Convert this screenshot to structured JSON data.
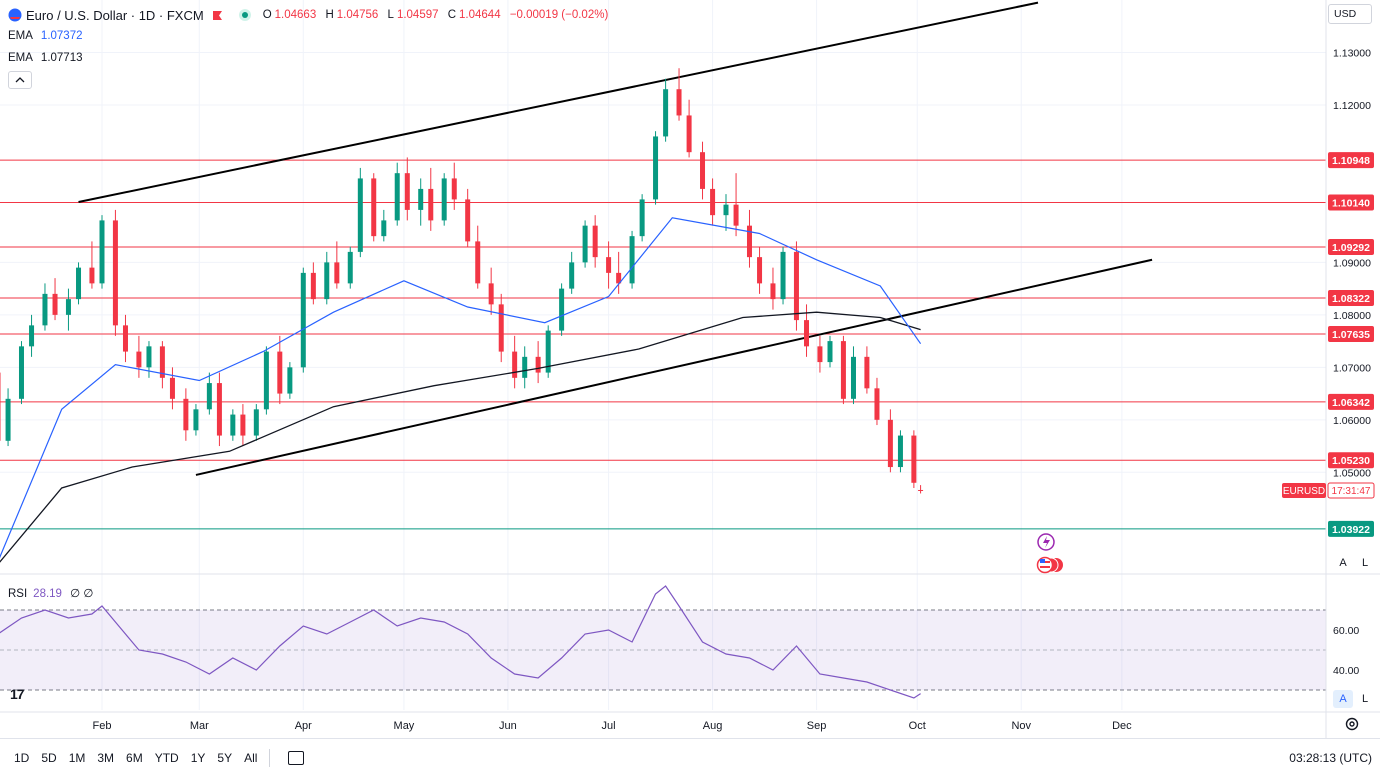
{
  "header": {
    "symbol_title": "Euro / U.S. Dollar · 1D · FXCM",
    "ohlc": [
      {
        "k": "O",
        "v": "1.04663"
      },
      {
        "k": "H",
        "v": "1.04756"
      },
      {
        "k": "L",
        "v": "1.04597"
      },
      {
        "k": "C",
        "v": "1.04644"
      },
      {
        "k": "",
        "v": "−0.00019 (−0.02%)"
      }
    ]
  },
  "indicators": {
    "ema1": {
      "label": "EMA",
      "value": "1.07372",
      "color": "#2962ff"
    },
    "ema2": {
      "label": "EMA",
      "value": "1.07713",
      "color": "#131722"
    },
    "rsi": {
      "label": "RSI",
      "value": "28.19",
      "extra": "∅ ∅",
      "color": "#7e57c2"
    }
  },
  "currency_selector": "USD",
  "scale_buttons": {
    "auto": "A",
    "log": "L"
  },
  "timeframes": [
    "1D",
    "5D",
    "1M",
    "3M",
    "6M",
    "YTD",
    "1Y",
    "5Y",
    "All"
  ],
  "clock": "03:28:13 (UTC)",
  "logo": "17",
  "colors": {
    "up": "#089981",
    "down": "#f23645",
    "ema_fast": "#2962ff",
    "ema_slow": "#131722",
    "rsi": "#7e57c2",
    "support": "#089981",
    "resistance": "#f23645"
  },
  "chart_data": {
    "type": "candlestick",
    "symbol": "EURUSD",
    "price_axis": {
      "range": [
        1.031,
        1.14
      ],
      "ticks": [
        "1.13000",
        "1.12000",
        "1.09000",
        "1.08000",
        "1.07000",
        "1.06000",
        "1.05000"
      ]
    },
    "time_axis": {
      "labels": [
        "Feb",
        "Mar",
        "Apr",
        "May",
        "Jun",
        "Jul",
        "Aug",
        "Sep",
        "Oct",
        "Nov",
        "Dec"
      ]
    },
    "horizontal_levels": [
      {
        "price": 1.10948,
        "label": "1.10948",
        "color": "#f23645"
      },
      {
        "price": 1.1014,
        "label": "1.10140",
        "color": "#f23645"
      },
      {
        "price": 1.09292,
        "label": "1.09292",
        "color": "#f23645"
      },
      {
        "price": 1.08322,
        "label": "1.08322",
        "color": "#f23645"
      },
      {
        "price": 1.07635,
        "label": "1.07635",
        "color": "#f23645"
      },
      {
        "price": 1.06342,
        "label": "1.06342",
        "color": "#f23645"
      },
      {
        "price": 1.0523,
        "label": "1.05230",
        "color": "#f23645"
      },
      {
        "price": 1.03922,
        "label": "1.03922",
        "color": "#089981"
      }
    ],
    "current_price": {
      "symbol": "EURUSD",
      "countdown": "17:31:47"
    },
    "trend_channel": [
      {
        "from": [
          "Jan 25",
          1.1015
        ],
        "to": [
          "Nov 6",
          1.1395
        ]
      },
      {
        "from": [
          "Feb 29",
          1.0495
        ],
        "to": [
          "Dec 10",
          1.0905
        ]
      }
    ],
    "ema_fast_path": [
      [
        "Jan 1",
        1.033
      ],
      [
        "Jan 20",
        1.062
      ],
      [
        "Feb 5",
        1.0705
      ],
      [
        "Mar 1",
        1.0675
      ],
      [
        "Mar 20",
        1.073
      ],
      [
        "Apr 10",
        1.0805
      ],
      [
        "May 1",
        1.0865
      ],
      [
        "May 20",
        1.0815
      ],
      [
        "Jun 12",
        1.0785
      ],
      [
        "Jul 1",
        1.0835
      ],
      [
        "Jul 20",
        1.0985
      ],
      [
        "Aug 15",
        1.0955
      ],
      [
        "Sep 1",
        1.0905
      ],
      [
        "Sep 20",
        1.0855
      ],
      [
        "Oct 2",
        1.0745
      ]
    ],
    "ema_slow_path": [
      [
        "Jan 1",
        1.0325
      ],
      [
        "Jan 20",
        1.047
      ],
      [
        "Feb 10",
        1.051
      ],
      [
        "Mar 10",
        1.054
      ],
      [
        "Apr 10",
        1.0625
      ],
      [
        "May 10",
        1.0665
      ],
      [
        "Jun 10",
        1.0698
      ],
      [
        "Jul 10",
        1.0735
      ],
      [
        "Aug 10",
        1.0795
      ],
      [
        "Sep 1",
        1.0805
      ],
      [
        "Sep 20",
        1.0795
      ],
      [
        "Oct 2",
        1.0772
      ]
    ],
    "candles": [
      [
        "Jan 1",
        1.069,
        1.072,
        1.053,
        1.056
      ],
      [
        "Jan 4",
        1.056,
        1.066,
        1.055,
        1.064
      ],
      [
        "Jan 8",
        1.064,
        1.075,
        1.063,
        1.074
      ],
      [
        "Jan 11",
        1.074,
        1.08,
        1.072,
        1.078
      ],
      [
        "Jan 15",
        1.078,
        1.086,
        1.077,
        1.084
      ],
      [
        "Jan 18",
        1.084,
        1.087,
        1.079,
        1.08
      ],
      [
        "Jan 22",
        1.08,
        1.085,
        1.077,
        1.083
      ],
      [
        "Jan 25",
        1.083,
        1.09,
        1.082,
        1.089
      ],
      [
        "Jan 29",
        1.089,
        1.094,
        1.085,
        1.086
      ],
      [
        "Feb 1",
        1.086,
        1.099,
        1.085,
        1.098
      ],
      [
        "Feb 5",
        1.098,
        1.1,
        1.076,
        1.078
      ],
      [
        "Feb 8",
        1.078,
        1.08,
        1.071,
        1.073
      ],
      [
        "Feb 12",
        1.073,
        1.076,
        1.068,
        1.07
      ],
      [
        "Feb 15",
        1.07,
        1.075,
        1.068,
        1.074
      ],
      [
        "Feb 19",
        1.074,
        1.075,
        1.066,
        1.068
      ],
      [
        "Feb 22",
        1.068,
        1.07,
        1.062,
        1.064
      ],
      [
        "Feb 26",
        1.064,
        1.066,
        1.056,
        1.058
      ],
      [
        "Feb 29",
        1.058,
        1.063,
        1.057,
        1.062
      ],
      [
        "Mar 4",
        1.062,
        1.069,
        1.061,
        1.067
      ],
      [
        "Mar 7",
        1.067,
        1.069,
        1.055,
        1.057
      ],
      [
        "Mar 11",
        1.057,
        1.062,
        1.056,
        1.061
      ],
      [
        "Mar 14",
        1.061,
        1.063,
        1.055,
        1.057
      ],
      [
        "Mar 18",
        1.057,
        1.063,
        1.056,
        1.062
      ],
      [
        "Mar 21",
        1.062,
        1.074,
        1.061,
        1.073
      ],
      [
        "Mar 25",
        1.073,
        1.076,
        1.063,
        1.065
      ],
      [
        "Mar 28",
        1.065,
        1.071,
        1.064,
        1.07
      ],
      [
        "Apr 1",
        1.07,
        1.089,
        1.069,
        1.088
      ],
      [
        "Apr 4",
        1.088,
        1.09,
        1.082,
        1.083
      ],
      [
        "Apr 8",
        1.083,
        1.092,
        1.082,
        1.09
      ],
      [
        "Apr 11",
        1.09,
        1.094,
        1.085,
        1.086
      ],
      [
        "Apr 15",
        1.086,
        1.093,
        1.085,
        1.092
      ],
      [
        "Apr 18",
        1.092,
        1.108,
        1.091,
        1.106
      ],
      [
        "Apr 22",
        1.106,
        1.107,
        1.094,
        1.095
      ],
      [
        "Apr 25",
        1.095,
        1.1,
        1.094,
        1.098
      ],
      [
        "Apr 29",
        1.098,
        1.109,
        1.097,
        1.107
      ],
      [
        "May 2",
        1.107,
        1.11,
        1.098,
        1.1
      ],
      [
        "May 6",
        1.1,
        1.106,
        1.097,
        1.104
      ],
      [
        "May 9",
        1.104,
        1.108,
        1.096,
        1.098
      ],
      [
        "May 13",
        1.098,
        1.107,
        1.097,
        1.106
      ],
      [
        "May 16",
        1.106,
        1.109,
        1.1,
        1.102
      ],
      [
        "May 20",
        1.102,
        1.104,
        1.093,
        1.094
      ],
      [
        "May 23",
        1.094,
        1.097,
        1.085,
        1.086
      ],
      [
        "May 27",
        1.086,
        1.089,
        1.08,
        1.082
      ],
      [
        "May 30",
        1.082,
        1.084,
        1.071,
        1.073
      ],
      [
        "Jun 3",
        1.073,
        1.076,
        1.066,
        1.068
      ],
      [
        "Jun 6",
        1.068,
        1.074,
        1.066,
        1.072
      ],
      [
        "Jun 10",
        1.072,
        1.075,
        1.067,
        1.069
      ],
      [
        "Jun 13",
        1.069,
        1.078,
        1.068,
        1.077
      ],
      [
        "Jun 17",
        1.077,
        1.086,
        1.076,
        1.085
      ],
      [
        "Jun 20",
        1.085,
        1.092,
        1.084,
        1.09
      ],
      [
        "Jun 24",
        1.09,
        1.098,
        1.089,
        1.097
      ],
      [
        "Jun 27",
        1.097,
        1.099,
        1.089,
        1.091
      ],
      [
        "Jul 1",
        1.091,
        1.094,
        1.085,
        1.088
      ],
      [
        "Jul 4",
        1.088,
        1.092,
        1.084,
        1.086
      ],
      [
        "Jul 8",
        1.086,
        1.096,
        1.085,
        1.095
      ],
      [
        "Jul 11",
        1.095,
        1.103,
        1.094,
        1.102
      ],
      [
        "Jul 15",
        1.102,
        1.115,
        1.101,
        1.114
      ],
      [
        "Jul 18",
        1.114,
        1.125,
        1.113,
        1.123
      ],
      [
        "Jul 22",
        1.123,
        1.127,
        1.117,
        1.118
      ],
      [
        "Jul 25",
        1.118,
        1.121,
        1.11,
        1.111
      ],
      [
        "Jul 29",
        1.111,
        1.113,
        1.102,
        1.104
      ],
      [
        "Aug 1",
        1.104,
        1.106,
        1.097,
        1.099
      ],
      [
        "Aug 5",
        1.099,
        1.103,
        1.096,
        1.101
      ],
      [
        "Aug 8",
        1.101,
        1.107,
        1.095,
        1.097
      ],
      [
        "Aug 12",
        1.097,
        1.1,
        1.089,
        1.091
      ],
      [
        "Aug 15",
        1.091,
        1.093,
        1.084,
        1.086
      ],
      [
        "Aug 19",
        1.086,
        1.089,
        1.081,
        1.083
      ],
      [
        "Aug 22",
        1.083,
        1.093,
        1.082,
        1.092
      ],
      [
        "Aug 26",
        1.092,
        1.094,
        1.077,
        1.079
      ],
      [
        "Aug 29",
        1.079,
        1.082,
        1.072,
        1.074
      ],
      [
        "Sep 2",
        1.074,
        1.076,
        1.069,
        1.071
      ],
      [
        "Sep 5",
        1.071,
        1.076,
        1.07,
        1.075
      ],
      [
        "Sep 9",
        1.075,
        1.076,
        1.063,
        1.064
      ],
      [
        "Sep 12",
        1.064,
        1.074,
        1.063,
        1.072
      ],
      [
        "Sep 16",
        1.072,
        1.074,
        1.065,
        1.066
      ],
      [
        "Sep 19",
        1.066,
        1.068,
        1.059,
        1.06
      ],
      [
        "Sep 23",
        1.06,
        1.062,
        1.05,
        1.051
      ],
      [
        "Sep 26",
        1.051,
        1.058,
        1.05,
        1.057
      ],
      [
        "Sep 30",
        1.057,
        1.058,
        1.047,
        1.048
      ],
      [
        "Oct 2",
        1.04663,
        1.04756,
        1.04597,
        1.04644
      ]
    ],
    "rsi": {
      "value": "28.19",
      "ticks": [
        "60.00",
        "40.00"
      ],
      "band": [
        30,
        70
      ],
      "range": [
        20,
        85
      ],
      "path": [
        [
          "Jan 1",
          58
        ],
        [
          "Jan 8",
          66
        ],
        [
          "Jan 15",
          70
        ],
        [
          "Jan 22",
          66
        ],
        [
          "Jan 29",
          68
        ],
        [
          "Feb 1",
          72
        ],
        [
          "Feb 5",
          64
        ],
        [
          "Feb 12",
          50
        ],
        [
          "Feb 19",
          48
        ],
        [
          "Feb 26",
          44
        ],
        [
          "Mar 4",
          38
        ],
        [
          "Mar 11",
          46
        ],
        [
          "Mar 18",
          40
        ],
        [
          "Mar 25",
          52
        ],
        [
          "Apr 1",
          62
        ],
        [
          "Apr 8",
          58
        ],
        [
          "Apr 15",
          64
        ],
        [
          "Apr 22",
          70
        ],
        [
          "Apr 29",
          62
        ],
        [
          "May 6",
          66
        ],
        [
          "May 13",
          64
        ],
        [
          "May 20",
          58
        ],
        [
          "May 27",
          46
        ],
        [
          "Jun 3",
          38
        ],
        [
          "Jun 10",
          36
        ],
        [
          "Jun 17",
          46
        ],
        [
          "Jun 24",
          58
        ],
        [
          "Jul 1",
          60
        ],
        [
          "Jul 8",
          54
        ],
        [
          "Jul 15",
          78
        ],
        [
          "Jul 18",
          82
        ],
        [
          "Jul 22",
          72
        ],
        [
          "Jul 29",
          54
        ],
        [
          "Aug 5",
          48
        ],
        [
          "Aug 12",
          46
        ],
        [
          "Aug 19",
          40
        ],
        [
          "Aug 26",
          52
        ],
        [
          "Sep 2",
          38
        ],
        [
          "Sep 9",
          36
        ],
        [
          "Sep 16",
          34
        ],
        [
          "Sep 23",
          30
        ],
        [
          "Sep 30",
          26
        ],
        [
          "Oct 2",
          28.19
        ]
      ]
    }
  }
}
